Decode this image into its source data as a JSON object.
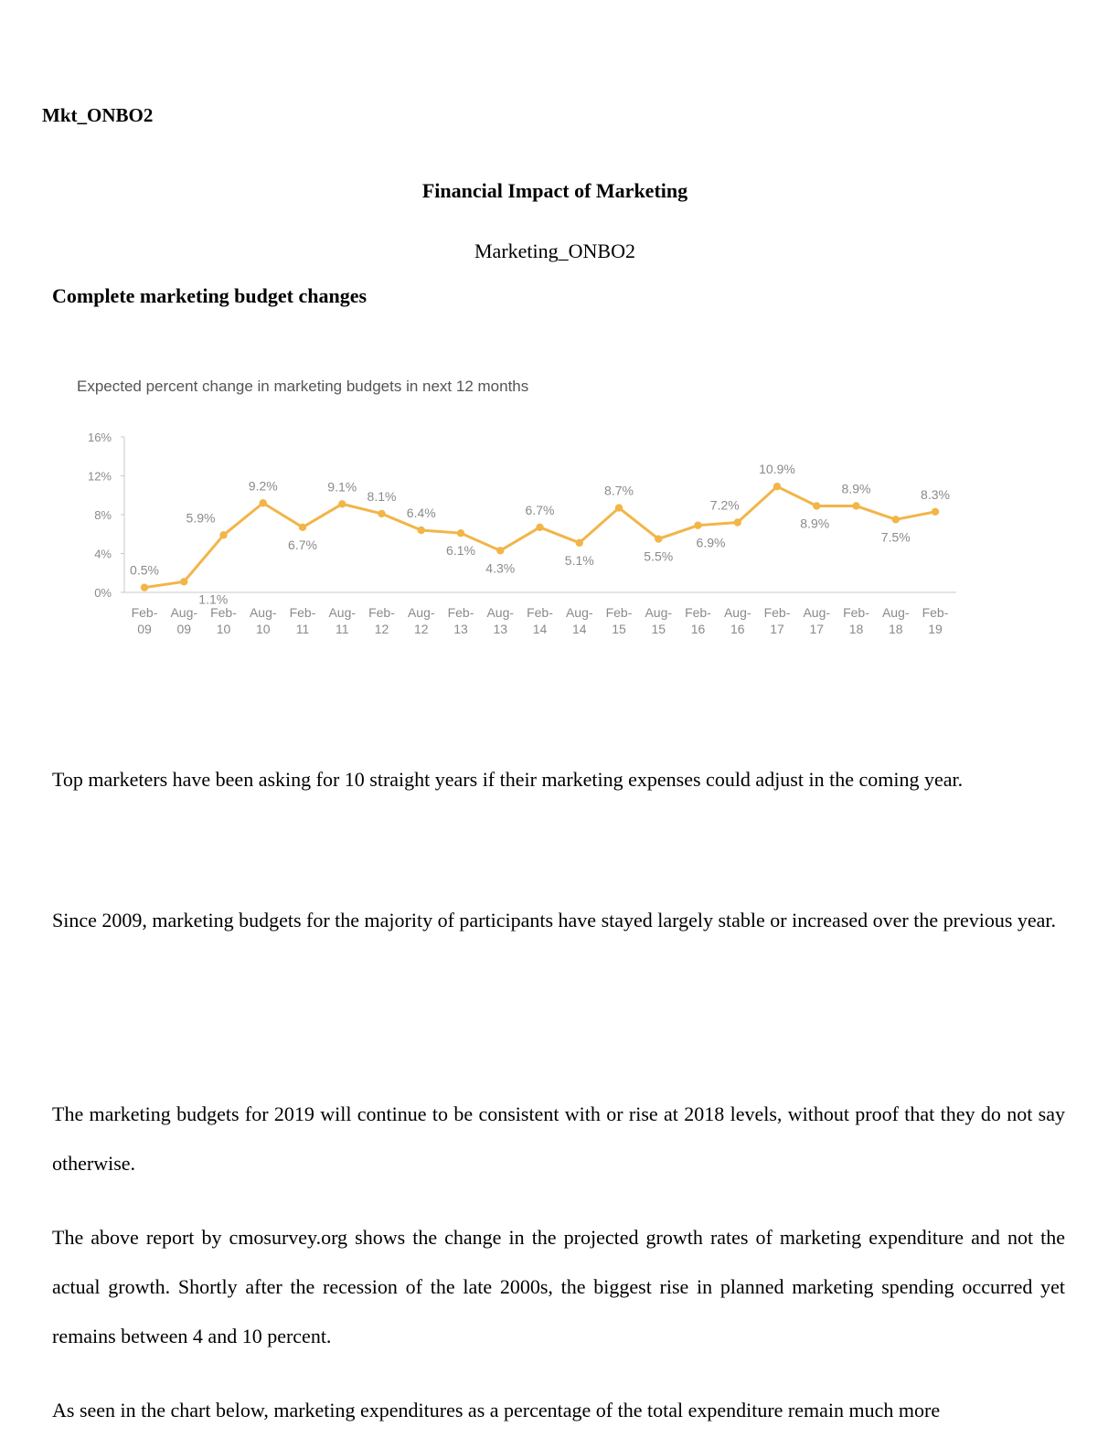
{
  "doc": {
    "header": "Mkt_ONBO2",
    "title": "Financial Impact of Marketing",
    "subtitle": "Marketing_ONBO2",
    "section_heading": "Complete marketing budget changes",
    "paragraphs": [
      "Top marketers have been asking for 10 straight years if their marketing expenses could adjust in the coming year.",
      "Since 2009, marketing budgets for the majority of participants have stayed largely stable or increased over the previous year.",
      "The marketing budgets for 2019 will continue to be consistent with or rise at 2018 levels, without proof that they do not say otherwise.",
      "The above report by cmosurvey.org shows the change in the projected growth rates of marketing expenditure and not the actual growth. Shortly after the recession of the late 2000s, the biggest rise in planned marketing spending occurred yet remains between 4 and 10 percent.",
      "As seen in the chart below, marketing expenditures as a percentage of the total expenditure remain much more"
    ]
  },
  "chart_data": {
    "type": "line",
    "title": "Expected percent change in marketing budgets in next 12 months",
    "categories": [
      "Feb-09",
      "Aug-09",
      "Feb-10",
      "Aug-10",
      "Feb-11",
      "Aug-11",
      "Feb-12",
      "Aug-12",
      "Feb-13",
      "Aug-13",
      "Feb-14",
      "Aug-14",
      "Feb-15",
      "Aug-15",
      "Feb-16",
      "Aug-16",
      "Feb-17",
      "Aug-17",
      "Feb-18",
      "Aug-18",
      "Feb-19"
    ],
    "values": [
      0.5,
      1.1,
      5.9,
      9.2,
      6.7,
      9.1,
      8.1,
      6.4,
      6.1,
      4.3,
      6.7,
      5.1,
      8.7,
      5.5,
      6.9,
      7.2,
      10.9,
      8.9,
      8.9,
      7.5,
      8.3
    ],
    "data_labels": [
      "0.5%",
      "1.1%",
      "5.9%",
      "9.2%",
      "6.7%",
      "9.1%",
      "8.1%",
      "6.4%",
      "6.1%",
      "4.3%",
      "6.7%",
      "5.1%",
      "8.7%",
      "5.5%",
      "6.9%",
      "7.2%",
      "10.9%",
      "8.9%",
      "8.9%",
      "7.5%",
      "8.3%"
    ],
    "yticks": [
      0,
      4,
      8,
      12,
      16
    ],
    "ytick_labels": [
      "0%",
      "4%",
      "8%",
      "12%",
      "16%"
    ],
    "ylim": [
      0,
      16
    ],
    "xlabel": "",
    "ylabel": "",
    "grid": false,
    "color": "#f2b548"
  }
}
